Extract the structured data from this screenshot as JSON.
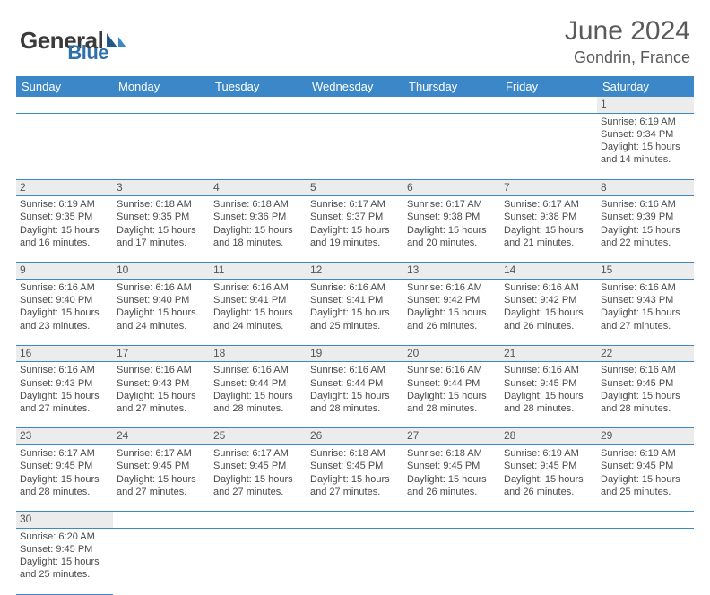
{
  "brand": {
    "part1": "General",
    "part2": "Blue"
  },
  "title": "June 2024",
  "location": "Gondrin, France",
  "colors": {
    "header_bg": "#3b87c8",
    "header_fg": "#ffffff",
    "daynum_bg": "#ececec",
    "text": "#4a4a4a",
    "rule": "#3b87c8",
    "brand_dark": "#3a3a3a",
    "brand_blue": "#2f6fab"
  },
  "day_names": [
    "Sunday",
    "Monday",
    "Tuesday",
    "Wednesday",
    "Thursday",
    "Friday",
    "Saturday"
  ],
  "weeks": [
    [
      null,
      null,
      null,
      null,
      null,
      null,
      {
        "n": "1",
        "sr": "Sunrise: 6:19 AM",
        "ss": "Sunset: 9:34 PM",
        "dl": "Daylight: 15 hours and 14 minutes."
      }
    ],
    [
      {
        "n": "2",
        "sr": "Sunrise: 6:19 AM",
        "ss": "Sunset: 9:35 PM",
        "dl": "Daylight: 15 hours and 16 minutes."
      },
      {
        "n": "3",
        "sr": "Sunrise: 6:18 AM",
        "ss": "Sunset: 9:35 PM",
        "dl": "Daylight: 15 hours and 17 minutes."
      },
      {
        "n": "4",
        "sr": "Sunrise: 6:18 AM",
        "ss": "Sunset: 9:36 PM",
        "dl": "Daylight: 15 hours and 18 minutes."
      },
      {
        "n": "5",
        "sr": "Sunrise: 6:17 AM",
        "ss": "Sunset: 9:37 PM",
        "dl": "Daylight: 15 hours and 19 minutes."
      },
      {
        "n": "6",
        "sr": "Sunrise: 6:17 AM",
        "ss": "Sunset: 9:38 PM",
        "dl": "Daylight: 15 hours and 20 minutes."
      },
      {
        "n": "7",
        "sr": "Sunrise: 6:17 AM",
        "ss": "Sunset: 9:38 PM",
        "dl": "Daylight: 15 hours and 21 minutes."
      },
      {
        "n": "8",
        "sr": "Sunrise: 6:16 AM",
        "ss": "Sunset: 9:39 PM",
        "dl": "Daylight: 15 hours and 22 minutes."
      }
    ],
    [
      {
        "n": "9",
        "sr": "Sunrise: 6:16 AM",
        "ss": "Sunset: 9:40 PM",
        "dl": "Daylight: 15 hours and 23 minutes."
      },
      {
        "n": "10",
        "sr": "Sunrise: 6:16 AM",
        "ss": "Sunset: 9:40 PM",
        "dl": "Daylight: 15 hours and 24 minutes."
      },
      {
        "n": "11",
        "sr": "Sunrise: 6:16 AM",
        "ss": "Sunset: 9:41 PM",
        "dl": "Daylight: 15 hours and 24 minutes."
      },
      {
        "n": "12",
        "sr": "Sunrise: 6:16 AM",
        "ss": "Sunset: 9:41 PM",
        "dl": "Daylight: 15 hours and 25 minutes."
      },
      {
        "n": "13",
        "sr": "Sunrise: 6:16 AM",
        "ss": "Sunset: 9:42 PM",
        "dl": "Daylight: 15 hours and 26 minutes."
      },
      {
        "n": "14",
        "sr": "Sunrise: 6:16 AM",
        "ss": "Sunset: 9:42 PM",
        "dl": "Daylight: 15 hours and 26 minutes."
      },
      {
        "n": "15",
        "sr": "Sunrise: 6:16 AM",
        "ss": "Sunset: 9:43 PM",
        "dl": "Daylight: 15 hours and 27 minutes."
      }
    ],
    [
      {
        "n": "16",
        "sr": "Sunrise: 6:16 AM",
        "ss": "Sunset: 9:43 PM",
        "dl": "Daylight: 15 hours and 27 minutes."
      },
      {
        "n": "17",
        "sr": "Sunrise: 6:16 AM",
        "ss": "Sunset: 9:43 PM",
        "dl": "Daylight: 15 hours and 27 minutes."
      },
      {
        "n": "18",
        "sr": "Sunrise: 6:16 AM",
        "ss": "Sunset: 9:44 PM",
        "dl": "Daylight: 15 hours and 28 minutes."
      },
      {
        "n": "19",
        "sr": "Sunrise: 6:16 AM",
        "ss": "Sunset: 9:44 PM",
        "dl": "Daylight: 15 hours and 28 minutes."
      },
      {
        "n": "20",
        "sr": "Sunrise: 6:16 AM",
        "ss": "Sunset: 9:44 PM",
        "dl": "Daylight: 15 hours and 28 minutes."
      },
      {
        "n": "21",
        "sr": "Sunrise: 6:16 AM",
        "ss": "Sunset: 9:45 PM",
        "dl": "Daylight: 15 hours and 28 minutes."
      },
      {
        "n": "22",
        "sr": "Sunrise: 6:16 AM",
        "ss": "Sunset: 9:45 PM",
        "dl": "Daylight: 15 hours and 28 minutes."
      }
    ],
    [
      {
        "n": "23",
        "sr": "Sunrise: 6:17 AM",
        "ss": "Sunset: 9:45 PM",
        "dl": "Daylight: 15 hours and 28 minutes."
      },
      {
        "n": "24",
        "sr": "Sunrise: 6:17 AM",
        "ss": "Sunset: 9:45 PM",
        "dl": "Daylight: 15 hours and 27 minutes."
      },
      {
        "n": "25",
        "sr": "Sunrise: 6:17 AM",
        "ss": "Sunset: 9:45 PM",
        "dl": "Daylight: 15 hours and 27 minutes."
      },
      {
        "n": "26",
        "sr": "Sunrise: 6:18 AM",
        "ss": "Sunset: 9:45 PM",
        "dl": "Daylight: 15 hours and 27 minutes."
      },
      {
        "n": "27",
        "sr": "Sunrise: 6:18 AM",
        "ss": "Sunset: 9:45 PM",
        "dl": "Daylight: 15 hours and 26 minutes."
      },
      {
        "n": "28",
        "sr": "Sunrise: 6:19 AM",
        "ss": "Sunset: 9:45 PM",
        "dl": "Daylight: 15 hours and 26 minutes."
      },
      {
        "n": "29",
        "sr": "Sunrise: 6:19 AM",
        "ss": "Sunset: 9:45 PM",
        "dl": "Daylight: 15 hours and 25 minutes."
      }
    ],
    [
      {
        "n": "30",
        "sr": "Sunrise: 6:20 AM",
        "ss": "Sunset: 9:45 PM",
        "dl": "Daylight: 15 hours and 25 minutes."
      },
      null,
      null,
      null,
      null,
      null,
      null
    ]
  ]
}
